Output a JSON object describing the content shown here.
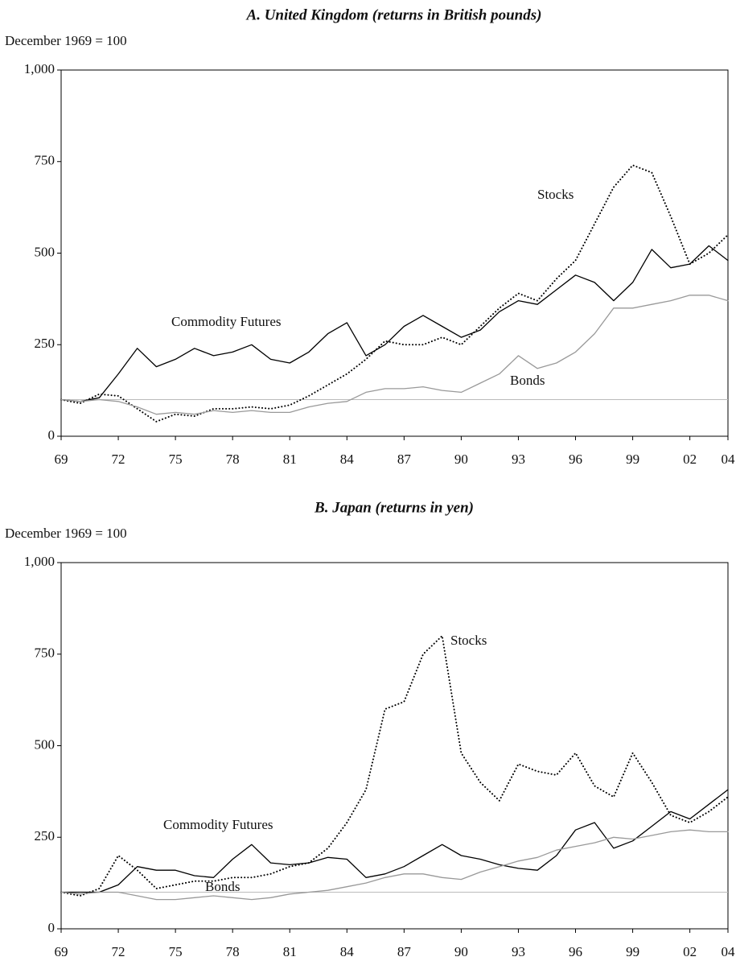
{
  "chart_data": [
    {
      "type": "line",
      "title": "A. United Kingdom (returns in British pounds)",
      "y_label": "December 1969 = 100",
      "x": [
        1969,
        1970,
        1971,
        1972,
        1973,
        1974,
        1975,
        1976,
        1977,
        1978,
        1979,
        1980,
        1981,
        1982,
        1983,
        1984,
        1985,
        1986,
        1987,
        1988,
        1989,
        1990,
        1991,
        1992,
        1993,
        1994,
        1995,
        1996,
        1997,
        1998,
        1999,
        2000,
        2001,
        2002,
        2003,
        2004
      ],
      "series": [
        {
          "name": "Commodity Futures",
          "color": "#000000",
          "dash": "solid",
          "values": [
            100,
            95,
            105,
            170,
            240,
            190,
            210,
            240,
            220,
            230,
            250,
            210,
            200,
            230,
            280,
            310,
            220,
            250,
            300,
            330,
            300,
            270,
            290,
            340,
            370,
            360,
            400,
            440,
            420,
            370,
            420,
            510,
            460,
            470,
            520,
            480
          ]
        },
        {
          "name": "Stocks",
          "color": "#000000",
          "dash": "dotted",
          "values": [
            100,
            90,
            115,
            110,
            75,
            40,
            60,
            55,
            75,
            75,
            80,
            75,
            85,
            110,
            140,
            170,
            210,
            260,
            250,
            250,
            270,
            250,
            300,
            350,
            390,
            370,
            430,
            480,
            580,
            680,
            740,
            720,
            600,
            470,
            500,
            550
          ]
        },
        {
          "name": "Bonds",
          "color": "#999999",
          "dash": "solid",
          "values": [
            100,
            95,
            100,
            95,
            80,
            60,
            65,
            60,
            70,
            65,
            70,
            65,
            65,
            80,
            90,
            95,
            120,
            130,
            130,
            135,
            125,
            120,
            145,
            170,
            220,
            185,
            200,
            230,
            280,
            350,
            350,
            360,
            370,
            385,
            385,
            370
          ]
        }
      ],
      "baseline": 100,
      "xlim": [
        1969,
        2004
      ],
      "xticks": [
        {
          "value": 1969,
          "label": "69"
        },
        {
          "value": 1972,
          "label": "72"
        },
        {
          "value": 1975,
          "label": "75"
        },
        {
          "value": 1978,
          "label": "78"
        },
        {
          "value": 1981,
          "label": "81"
        },
        {
          "value": 1984,
          "label": "84"
        },
        {
          "value": 1987,
          "label": "87"
        },
        {
          "value": 1990,
          "label": "90"
        },
        {
          "value": 1993,
          "label": "93"
        },
        {
          "value": 1996,
          "label": "96"
        },
        {
          "value": 1999,
          "label": "99"
        },
        {
          "value": 2002,
          "label": "02"
        },
        {
          "value": 2004,
          "label": "04"
        }
      ],
      "ylim": [
        0,
        1000
      ],
      "yticks": [
        0,
        250,
        500,
        750,
        {
          "value": 1000,
          "label": "1,000"
        }
      ]
    },
    {
      "type": "line",
      "title": "B. Japan (returns in yen)",
      "y_label": "December 1969 = 100",
      "x": [
        1969,
        1970,
        1971,
        1972,
        1973,
        1974,
        1975,
        1976,
        1977,
        1978,
        1979,
        1980,
        1981,
        1982,
        1983,
        1984,
        1985,
        1986,
        1987,
        1988,
        1989,
        1990,
        1991,
        1992,
        1993,
        1994,
        1995,
        1996,
        1997,
        1998,
        1999,
        2000,
        2001,
        2002,
        2003,
        2004
      ],
      "series": [
        {
          "name": "Commodity Futures",
          "color": "#000000",
          "dash": "solid",
          "values": [
            100,
            100,
            100,
            120,
            170,
            160,
            160,
            145,
            140,
            190,
            230,
            180,
            175,
            180,
            195,
            190,
            140,
            150,
            170,
            200,
            230,
            200,
            190,
            175,
            165,
            160,
            200,
            270,
            290,
            220,
            240,
            280,
            320,
            300,
            340,
            380
          ]
        },
        {
          "name": "Stocks",
          "color": "#000000",
          "dash": "dotted",
          "values": [
            100,
            90,
            110,
            200,
            160,
            110,
            120,
            130,
            130,
            140,
            140,
            150,
            170,
            180,
            220,
            290,
            380,
            600,
            620,
            750,
            800,
            480,
            400,
            350,
            450,
            430,
            420,
            480,
            390,
            360,
            480,
            400,
            310,
            290,
            320,
            360
          ]
        },
        {
          "name": "Bonds",
          "color": "#999999",
          "dash": "solid",
          "values": [
            100,
            95,
            100,
            100,
            90,
            80,
            80,
            85,
            90,
            85,
            80,
            85,
            95,
            100,
            105,
            115,
            125,
            140,
            150,
            150,
            140,
            135,
            155,
            170,
            185,
            195,
            215,
            225,
            235,
            250,
            245,
            255,
            265,
            270,
            265,
            265
          ]
        }
      ],
      "baseline": 100,
      "xlim": [
        1969,
        2004
      ],
      "xticks": [
        {
          "value": 1969,
          "label": "69"
        },
        {
          "value": 1972,
          "label": "72"
        },
        {
          "value": 1975,
          "label": "75"
        },
        {
          "value": 1978,
          "label": "78"
        },
        {
          "value": 1981,
          "label": "81"
        },
        {
          "value": 1984,
          "label": "84"
        },
        {
          "value": 1987,
          "label": "87"
        },
        {
          "value": 1990,
          "label": "90"
        },
        {
          "value": 1993,
          "label": "93"
        },
        {
          "value": 1996,
          "label": "96"
        },
        {
          "value": 1999,
          "label": "99"
        },
        {
          "value": 2002,
          "label": "02"
        },
        {
          "value": 2004,
          "label": "04"
        }
      ],
      "ylim": [
        0,
        1000
      ],
      "yticks": [
        0,
        250,
        500,
        750,
        {
          "value": 1000,
          "label": "1,000"
        }
      ]
    }
  ]
}
